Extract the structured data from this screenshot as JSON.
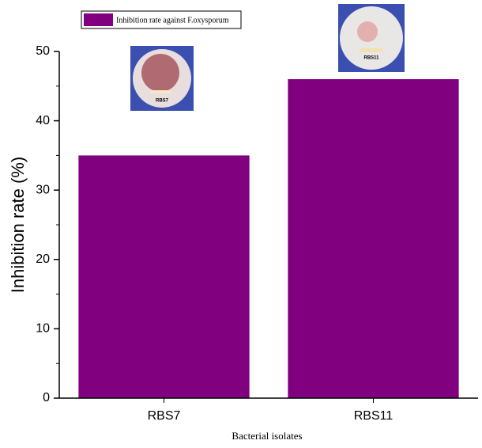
{
  "chart_data": {
    "type": "bar",
    "y_label": "Inhibition rate (%)",
    "x_label": "Bacterial isolates",
    "categories": [
      "RBS7",
      "RBS11"
    ],
    "series": [
      {
        "name": "Inhibition rate against F.oxysporum",
        "color": "#800080",
        "values": [
          35,
          46
        ]
      }
    ],
    "ylim": [
      0,
      50
    ],
    "yticks": [
      0,
      10,
      20,
      30,
      40,
      50
    ]
  }
}
